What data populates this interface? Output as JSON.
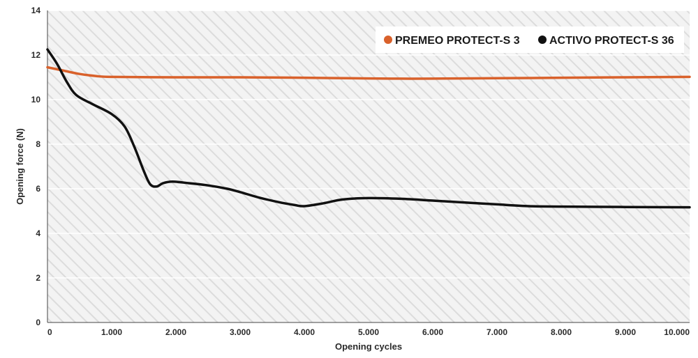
{
  "chart_data": {
    "type": "line",
    "xlabel": "Opening cycles",
    "ylabel": "Opening force (N)",
    "xlim": [
      0,
      10000
    ],
    "ylim": [
      0,
      14
    ],
    "x_ticks": [
      0,
      1000,
      2000,
      3000,
      4000,
      5000,
      6000,
      7000,
      8000,
      9000,
      10000
    ],
    "x_tick_labels": [
      "0",
      "1.000",
      "2.000",
      "3.000",
      "4.000",
      "5.000",
      "6.000",
      "7.000",
      "8.000",
      "9.000",
      "10.000"
    ],
    "y_ticks": [
      0,
      2,
      4,
      6,
      8,
      10,
      12,
      14
    ],
    "y_tick_labels": [
      "0",
      "2",
      "4",
      "6",
      "8",
      "10",
      "12",
      "14"
    ],
    "grid": "horizontal",
    "background": "diagonal hatch",
    "legend_position": "top-right",
    "series": [
      {
        "name": "PREMEO PROTECT-S 3",
        "color": "#d9612b",
        "points": [
          [
            0,
            11.45
          ],
          [
            250,
            11.3
          ],
          [
            500,
            11.15
          ],
          [
            750,
            11.06
          ],
          [
            1000,
            11.02
          ],
          [
            2000,
            11.0
          ],
          [
            3000,
            11.0
          ],
          [
            4000,
            10.98
          ],
          [
            5000,
            10.95
          ],
          [
            5500,
            10.94
          ],
          [
            6000,
            10.94
          ],
          [
            7000,
            10.96
          ],
          [
            8000,
            10.98
          ],
          [
            9000,
            11.0
          ],
          [
            10000,
            11.02
          ]
        ]
      },
      {
        "name": "ACTIVO PROTECT-S 36",
        "color": "#111111",
        "points": [
          [
            0,
            12.25
          ],
          [
            150,
            11.6
          ],
          [
            300,
            10.8
          ],
          [
            450,
            10.2
          ],
          [
            700,
            9.8
          ],
          [
            1000,
            9.35
          ],
          [
            1200,
            8.8
          ],
          [
            1350,
            7.9
          ],
          [
            1500,
            6.8
          ],
          [
            1600,
            6.2
          ],
          [
            1700,
            6.1
          ],
          [
            1800,
            6.25
          ],
          [
            1950,
            6.32
          ],
          [
            2200,
            6.25
          ],
          [
            2500,
            6.15
          ],
          [
            2800,
            6.0
          ],
          [
            3000,
            5.85
          ],
          [
            3300,
            5.6
          ],
          [
            3600,
            5.4
          ],
          [
            3850,
            5.27
          ],
          [
            4000,
            5.22
          ],
          [
            4300,
            5.35
          ],
          [
            4600,
            5.52
          ],
          [
            5000,
            5.58
          ],
          [
            5500,
            5.55
          ],
          [
            6000,
            5.47
          ],
          [
            6500,
            5.38
          ],
          [
            7000,
            5.3
          ],
          [
            7500,
            5.22
          ],
          [
            8000,
            5.2
          ],
          [
            9000,
            5.18
          ],
          [
            10000,
            5.17
          ]
        ]
      }
    ]
  }
}
